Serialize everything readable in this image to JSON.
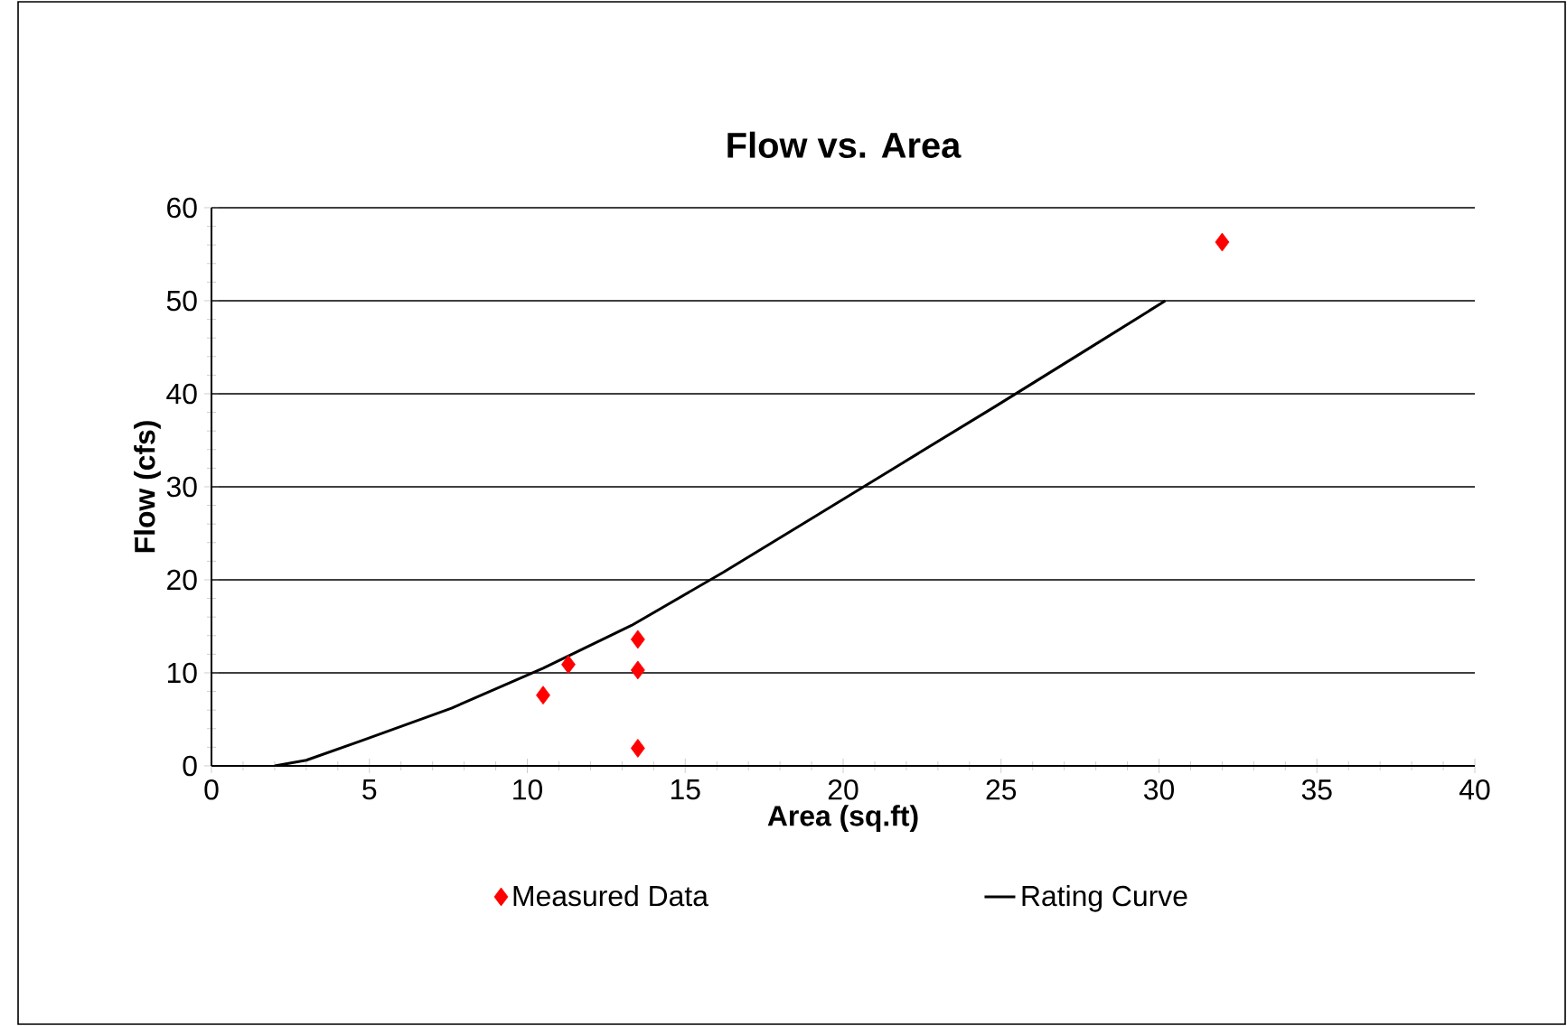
{
  "chart_data": {
    "type": "scatter",
    "title": "Flow vs. Area",
    "xlabel": "Area (sq.ft)",
    "ylabel": "Flow (cfs)",
    "xlim": [
      0,
      40
    ],
    "ylim": [
      0,
      60
    ],
    "xticks": [
      0,
      5,
      10,
      15,
      20,
      25,
      30,
      35,
      40
    ],
    "yticks": [
      0,
      10,
      20,
      30,
      40,
      50,
      60
    ],
    "grid": "y",
    "legend": "bottom",
    "series": [
      {
        "name": "Measured Data",
        "marker": "diamond",
        "color": "#ff0000",
        "x": [
          10.5,
          11.3,
          13.5,
          13.5,
          13.5,
          32.0
        ],
        "values": [
          7.6,
          10.9,
          13.6,
          10.3,
          1.9,
          56.3
        ]
      },
      {
        "name": "Rating Curve",
        "type": "line",
        "marker": "none",
        "line_style": "solid",
        "color": "#000000",
        "x": [
          2,
          3,
          4.75,
          7.6,
          10.5,
          13.3,
          16.2,
          19.1,
          21.9,
          24.8,
          27.6,
          30.2
        ],
        "values": [
          0,
          0.6,
          2.7,
          6.2,
          10.5,
          15.1,
          20.8,
          26.8,
          32.6,
          38.6,
          44.5,
          50
        ]
      }
    ]
  }
}
